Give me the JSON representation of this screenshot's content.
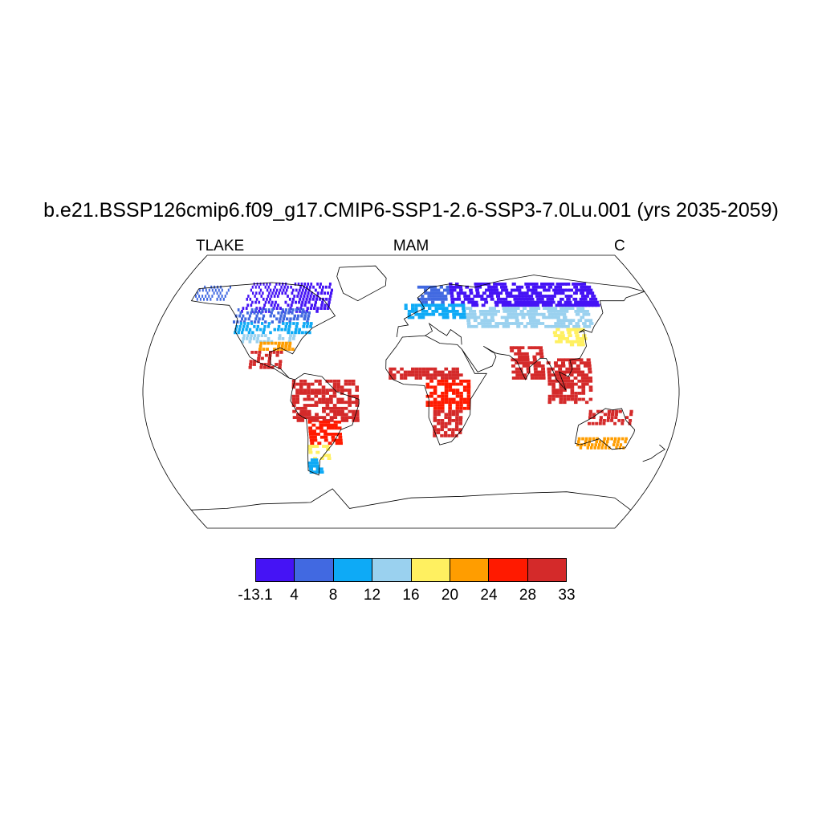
{
  "title": "b.e21.BSSP126cmip6.f09_g17.CMIP6-SSP1-2.6-SSP3-7.0Lu.001 (yrs 2035-2059)",
  "subtitle_left": "TLAKE",
  "subtitle_center": "MAM",
  "subtitle_right": "C",
  "colorbar": {
    "colors": [
      "#4513f5",
      "#4169e1",
      "#0eaaf6",
      "#9ad1ef",
      "#fff060",
      "#ff9d00",
      "#ff1a00",
      "#d42a2a"
    ],
    "labels": [
      "-13.1",
      "4",
      "8",
      "12",
      "16",
      "20",
      "24",
      "28",
      "33"
    ]
  },
  "map_regions": [
    {
      "name": "northern-canada",
      "lon": [
        -125,
        -60
      ],
      "lat": [
        52,
        72
      ],
      "color": "#4513f5"
    },
    {
      "name": "alaska",
      "lon": [
        -165,
        -140
      ],
      "lat": [
        60,
        70
      ],
      "color": "#4169e1"
    },
    {
      "name": "southern-canada",
      "lon": [
        -128,
        -75
      ],
      "lat": [
        45,
        55
      ],
      "color": "#4169e1"
    },
    {
      "name": "northern-us",
      "lon": [
        -125,
        -70
      ],
      "lat": [
        38,
        46
      ],
      "color": "#0eaaf6"
    },
    {
      "name": "central-us",
      "lon": [
        -118,
        -82
      ],
      "lat": [
        32,
        38
      ],
      "color": "#9ad1ef"
    },
    {
      "name": "southern-us",
      "lon": [
        -105,
        -82
      ],
      "lat": [
        27,
        32
      ],
      "color": "#ff9d00"
    },
    {
      "name": "mexico",
      "lon": [
        -110,
        -88
      ],
      "lat": [
        15,
        27
      ],
      "color": "#d42a2a"
    },
    {
      "name": "amazon",
      "lon": [
        -80,
        -36
      ],
      "lat": [
        -20,
        8
      ],
      "color": "#d42a2a"
    },
    {
      "name": "southern-south-america",
      "lon": [
        -70,
        -48
      ],
      "lat": [
        -35,
        -20
      ],
      "color": "#ff1a00"
    },
    {
      "name": "argentina",
      "lon": [
        -72,
        -57
      ],
      "lat": [
        -45,
        -35
      ],
      "color": "#fff060"
    },
    {
      "name": "patagonia",
      "lon": [
        -74,
        -66
      ],
      "lat": [
        -54,
        -45
      ],
      "color": "#0eaaf6"
    },
    {
      "name": "scandinavia",
      "lon": [
        5,
        30
      ],
      "lat": [
        58,
        70
      ],
      "color": "#4169e1"
    },
    {
      "name": "siberia",
      "lon": [
        30,
        140
      ],
      "lat": [
        56,
        72
      ],
      "color": "#4513f5"
    },
    {
      "name": "europe",
      "lon": [
        -5,
        40
      ],
      "lat": [
        48,
        58
      ],
      "color": "#0eaaf6"
    },
    {
      "name": "central-asia",
      "lon": [
        40,
        130
      ],
      "lat": [
        42,
        55
      ],
      "color": "#9ad1ef"
    },
    {
      "name": "east-asia",
      "lon": [
        100,
        122
      ],
      "lat": [
        30,
        42
      ],
      "color": "#fff060"
    },
    {
      "name": "sahel",
      "lon": [
        -15,
        35
      ],
      "lat": [
        8,
        16
      ],
      "color": "#d42a2a"
    },
    {
      "name": "central-africa",
      "lon": [
        10,
        40
      ],
      "lat": [
        -12,
        8
      ],
      "color": "#ff1a00"
    },
    {
      "name": "southern-africa",
      "lon": [
        15,
        35
      ],
      "lat": [
        -30,
        -12
      ],
      "color": "#d42a2a"
    },
    {
      "name": "india",
      "lon": [
        68,
        90
      ],
      "lat": [
        8,
        30
      ],
      "color": "#d42a2a"
    },
    {
      "name": "southeast-asia",
      "lon": [
        92,
        120
      ],
      "lat": [
        -8,
        22
      ],
      "color": "#d42a2a"
    },
    {
      "name": "northern-australia",
      "lon": [
        120,
        150
      ],
      "lat": [
        -22,
        -12
      ],
      "color": "#d42a2a"
    },
    {
      "name": "southern-australia",
      "lon": [
        115,
        150
      ],
      "lat": [
        -38,
        -30
      ],
      "color": "#ff9d00"
    }
  ]
}
